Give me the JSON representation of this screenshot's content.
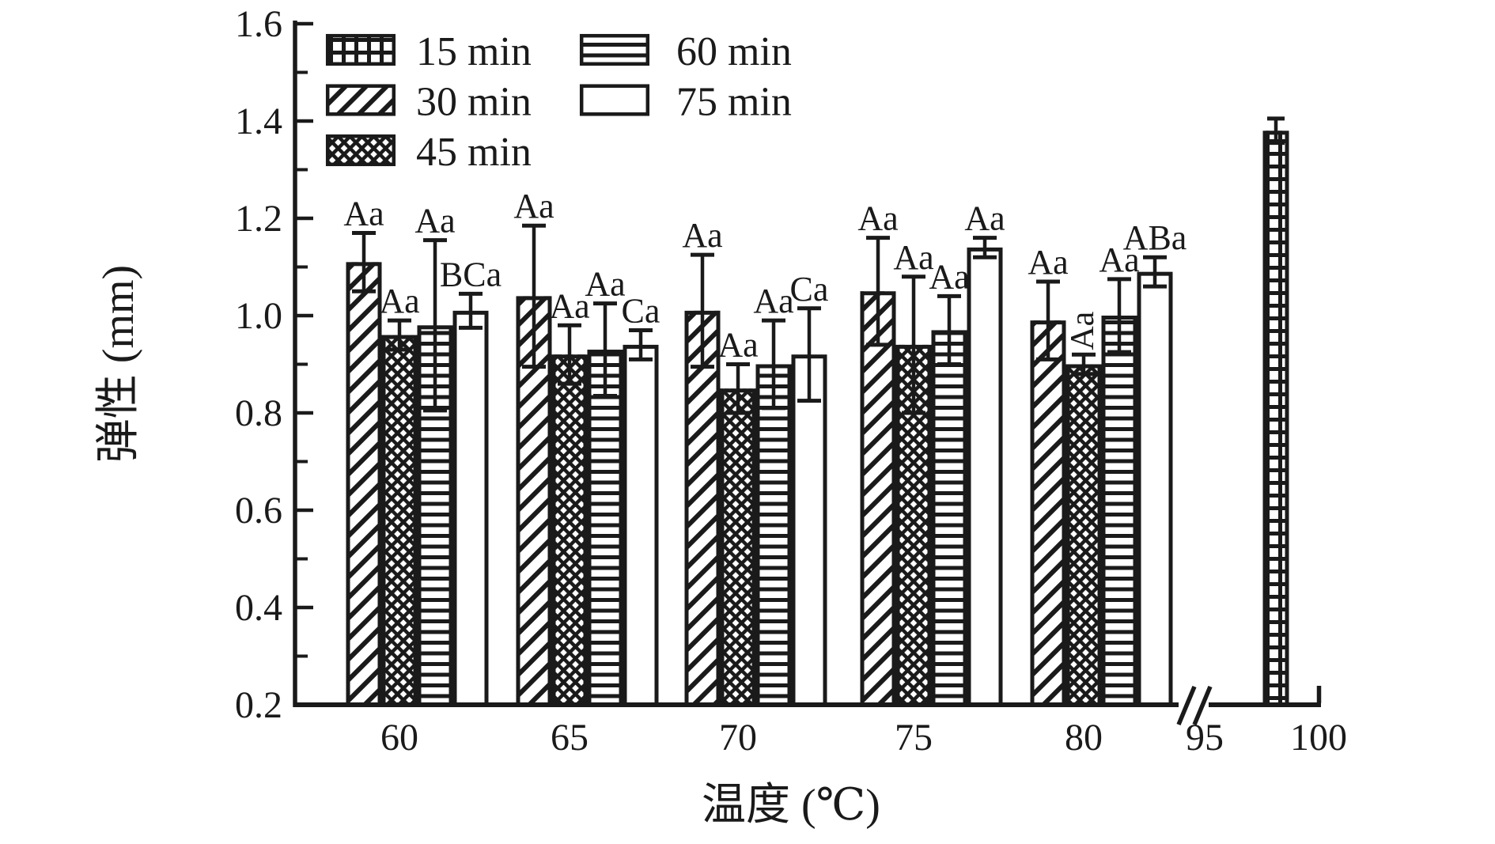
{
  "figure": {
    "background": "#ffffff",
    "ink_color": "#1a1a1a"
  },
  "chart_data": {
    "type": "bar",
    "title": "",
    "xlabel": "温度 (℃)",
    "ylabel": "弹性 (mm)",
    "ylim": [
      0.2,
      1.6
    ],
    "yticks": [
      "0.2",
      "0.4",
      "0.6",
      "0.8",
      "1.0",
      "1.2",
      "1.4",
      "1.6"
    ],
    "minor_yticks": [
      0.3,
      0.5,
      0.7,
      0.9,
      1.1,
      1.3,
      1.5
    ],
    "xticks": [
      "60",
      "65",
      "70",
      "75",
      "80",
      "95",
      "100"
    ],
    "axis_break_between": [
      "80",
      "95"
    ],
    "grid": "off",
    "legend": {
      "position": "top-left",
      "items": [
        {
          "label": "15 min",
          "pattern": "grid"
        },
        {
          "label": "30 min",
          "pattern": "diagonal"
        },
        {
          "label": "45 min",
          "pattern": "crosshatch"
        },
        {
          "label": "60 min",
          "pattern": "horizontal"
        },
        {
          "label": "75 min",
          "pattern": "plain"
        }
      ]
    },
    "groups": [
      {
        "temp": "60",
        "bars": [
          {
            "series": "30 min",
            "value": 1.11,
            "err": 0.06,
            "label": "Aa"
          },
          {
            "series": "45 min",
            "value": 0.96,
            "err": 0.03,
            "label": "Aa"
          },
          {
            "series": "60 min",
            "value": 0.98,
            "err": 0.175,
            "label": "Aa"
          },
          {
            "series": "75 min",
            "value": 1.01,
            "err": 0.035,
            "label": "BCa"
          }
        ]
      },
      {
        "temp": "65",
        "bars": [
          {
            "series": "30 min",
            "value": 1.04,
            "err": 0.145,
            "label": "Aa"
          },
          {
            "series": "45 min",
            "value": 0.92,
            "err": 0.06,
            "label": "Aa"
          },
          {
            "series": "60 min",
            "value": 0.93,
            "err": 0.095,
            "label": "Aa"
          },
          {
            "series": "75 min",
            "value": 0.94,
            "err": 0.03,
            "label": "Ca"
          }
        ]
      },
      {
        "temp": "70",
        "bars": [
          {
            "series": "30 min",
            "value": 1.01,
            "err": 0.115,
            "label": "Aa"
          },
          {
            "series": "45 min",
            "value": 0.85,
            "err": 0.05,
            "label": "Aa"
          },
          {
            "series": "60 min",
            "value": 0.9,
            "err": 0.09,
            "label": "Aa"
          },
          {
            "series": "75 min",
            "value": 0.92,
            "err": 0.095,
            "label": "Ca"
          }
        ]
      },
      {
        "temp": "75",
        "bars": [
          {
            "series": "30 min",
            "value": 1.05,
            "err": 0.11,
            "label": "Aa"
          },
          {
            "series": "45 min",
            "value": 0.94,
            "err": 0.14,
            "label": "Aa"
          },
          {
            "series": "60 min",
            "value": 0.97,
            "err": 0.07,
            "label": "Aa"
          },
          {
            "series": "75 min",
            "value": 1.14,
            "err": 0.02,
            "label": "Aa"
          }
        ]
      },
      {
        "temp": "80",
        "bars": [
          {
            "series": "30 min",
            "value": 0.99,
            "err": 0.08,
            "label": "Aa"
          },
          {
            "series": "45 min",
            "value": 0.9,
            "err": 0.02,
            "label": "Aa",
            "label_rotated": true
          },
          {
            "series": "60 min",
            "value": 1.0,
            "err": 0.075,
            "label": "Aa"
          },
          {
            "series": "75 min",
            "value": 1.09,
            "err": 0.03,
            "label": "ABa"
          }
        ]
      },
      {
        "temp": "100",
        "bars": [
          {
            "series": "15 min",
            "value": 1.38,
            "err": 0.025,
            "label": ""
          }
        ]
      }
    ]
  }
}
